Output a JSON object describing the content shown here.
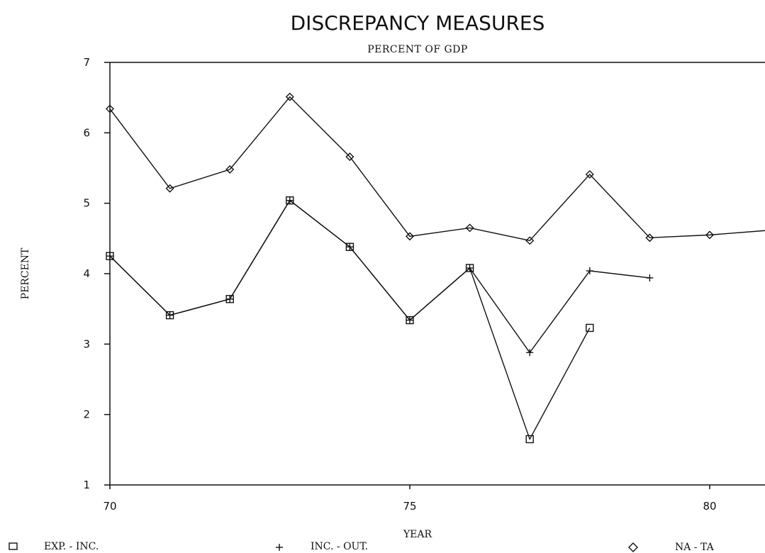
{
  "chart_data": {
    "type": "line",
    "title": "DISCREPANCY MEASURES",
    "subtitle": "PERCENT OF GDP",
    "xlabel": "YEAR",
    "ylabel": "PERCENT",
    "xlim": [
      70,
      81.5
    ],
    "ylim": [
      1,
      7
    ],
    "x_ticks": [
      70,
      75,
      80
    ],
    "y_ticks": [
      1,
      2,
      3,
      4,
      5,
      6,
      7
    ],
    "grid": false,
    "legend_position": "bottom",
    "series": [
      {
        "name": "EXP. - INC.",
        "marker": "square",
        "x": [
          70,
          71,
          72,
          73,
          74,
          75,
          76,
          77,
          78
        ],
        "y": [
          4.25,
          3.41,
          3.64,
          5.04,
          4.38,
          3.34,
          4.08,
          1.65,
          3.23
        ]
      },
      {
        "name": "INC. - OUT.",
        "marker": "plus",
        "x": [
          70,
          71,
          72,
          73,
          74,
          75,
          76,
          77,
          78,
          79
        ],
        "y": [
          4.25,
          3.41,
          3.64,
          5.04,
          4.38,
          3.34,
          4.08,
          2.88,
          4.04,
          3.94
        ]
      },
      {
        "name": "NA - TA",
        "marker": "diamond",
        "x": [
          70,
          71,
          72,
          73,
          74,
          75,
          76,
          77,
          78,
          79,
          80,
          81.5
        ],
        "y": [
          6.34,
          5.21,
          5.48,
          6.51,
          5.66,
          4.53,
          4.65,
          4.47,
          5.41,
          4.51,
          4.55,
          4.65
        ]
      }
    ]
  }
}
